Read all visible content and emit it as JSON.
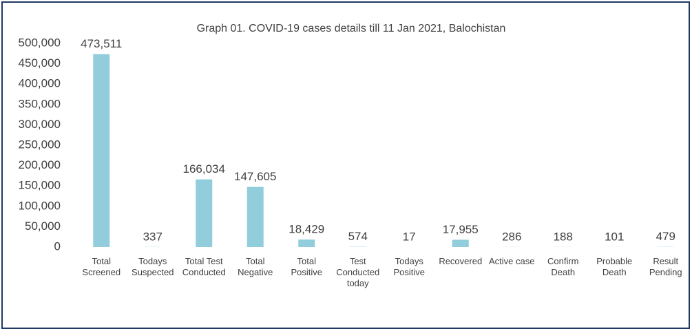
{
  "chart_data": {
    "type": "bar",
    "title": "Graph 01. COVID-19 cases details till 11 Jan 2021, Balochistan",
    "categories": [
      "Total Screened",
      "Todays Suspected",
      "Total Test Conducted",
      "Total Negative",
      "Total Positive",
      "Test Conducted today",
      "Todays Positive",
      "Recovered",
      "Active case",
      "Confirm Death",
      "Probable Death",
      "Result Pending"
    ],
    "values": [
      473511,
      337,
      166034,
      147605,
      18429,
      574,
      17,
      17955,
      286,
      188,
      101,
      479
    ],
    "value_labels": [
      "473,511",
      "337",
      "166,034",
      "147,605",
      "18,429",
      "574",
      "17",
      "17,955",
      "286",
      "188",
      "101",
      "479"
    ],
    "color": "#92cddc",
    "ylim": [
      0,
      500000
    ],
    "yticks": [
      0,
      {
        "value": 50000,
        "label": "50,000"
      },
      {
        "value": 100000,
        "label": "100,000"
      },
      {
        "value": 150000,
        "label": "150,000"
      },
      {
        "value": 200000,
        "label": "200,000"
      },
      {
        "value": 250000,
        "label": "250,000"
      },
      {
        "value": 300000,
        "label": "300,000"
      },
      {
        "value": 350000,
        "label": "350,000"
      },
      {
        "value": 400000,
        "label": "400,000"
      },
      {
        "value": 450000,
        "label": "450,000"
      },
      {
        "value": 500000,
        "label": "500,000"
      }
    ],
    "grid": false
  }
}
